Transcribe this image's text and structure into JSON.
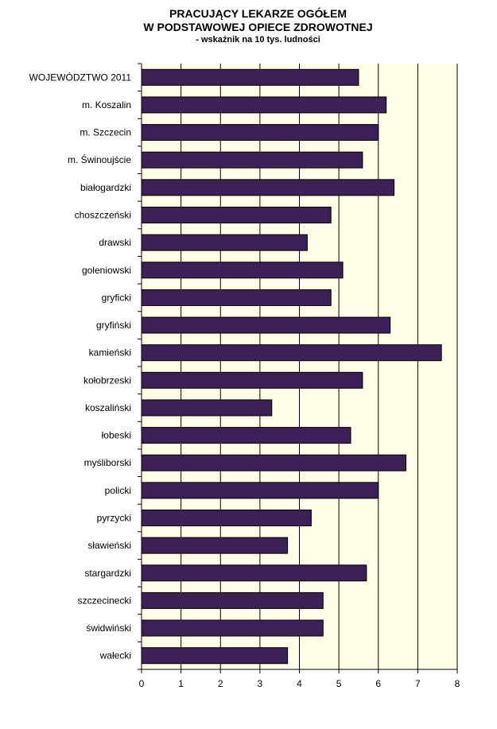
{
  "chart_data": {
    "type": "bar",
    "orientation": "horizontal",
    "title": "PRACUJĄCY LEKARZE OGÓŁEM",
    "title_line2": "W PODSTAWOWEJ OPIECE ZDROWOTNEJ",
    "subtitle": "- wskaźnik na 10 tys. ludności",
    "categories": [
      "WOJEWÓDZTWO 2011",
      "m. Koszalin",
      "m. Szczecin",
      "m. Świnoujście",
      "białogardzki",
      "choszczeński",
      "drawski",
      "goleniowski",
      "gryficki",
      "gryfiński",
      "kamieński",
      "kołobrzeski",
      "koszaliński",
      "łobeski",
      "myśliborski",
      "policki",
      "pyrzycki",
      "sławieński",
      "stargardzki",
      "szczecinecki",
      "świdwiński",
      "wałecki"
    ],
    "values": [
      5.5,
      6.2,
      6.0,
      5.6,
      6.4,
      4.8,
      4.2,
      5.1,
      4.8,
      6.3,
      7.6,
      5.6,
      3.3,
      5.3,
      6.7,
      6.0,
      4.3,
      3.7,
      5.7,
      4.6,
      4.6,
      3.7
    ],
    "xlim": [
      0,
      8
    ],
    "xticks": [
      "0",
      "1",
      "2",
      "3",
      "4",
      "5",
      "6",
      "7",
      "8"
    ],
    "grid": true,
    "bar_color": "#3b2156",
    "plot_background": "#ffffe8"
  }
}
